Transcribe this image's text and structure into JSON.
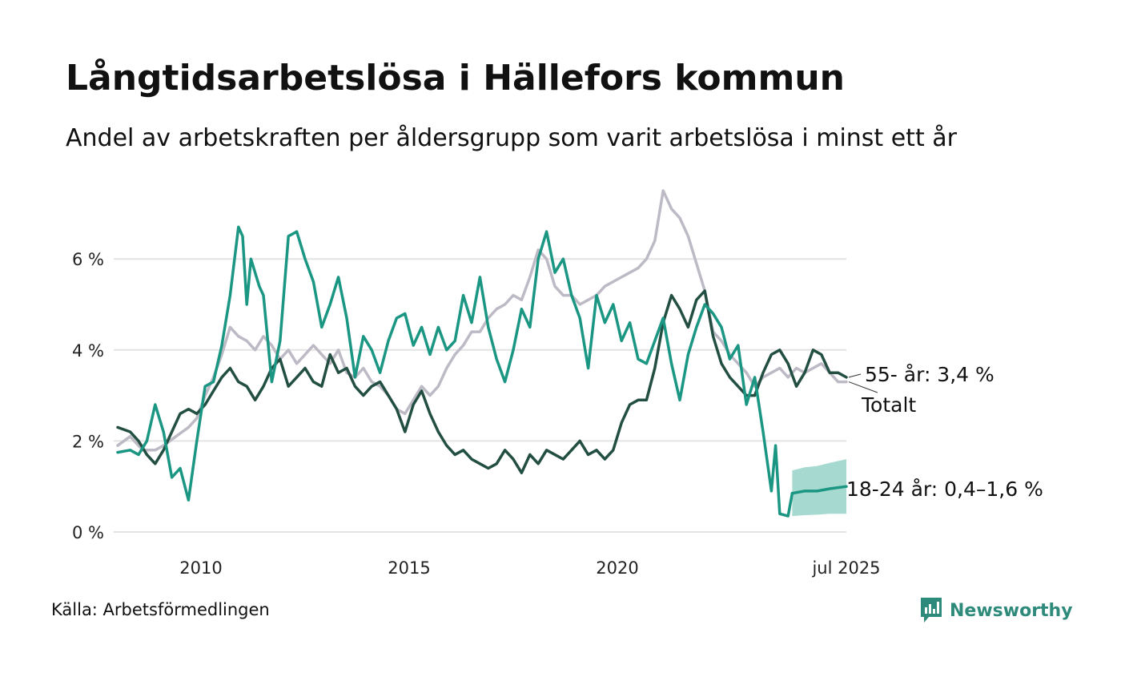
{
  "title": "Långtidsarbetslösa i Hällefors kommun",
  "subtitle": "Andel av arbetskraften per åldersgrupp som varit arbetslösa i minst ett år",
  "source": "Källa: Arbetsförmedlingen",
  "brand": {
    "name": "Newsworthy",
    "icon": "newsworthy-logo-icon"
  },
  "colors": {
    "youth": "#1a9683",
    "youth_band": "#a6d9cf",
    "senior": "#234f43",
    "total": "#bdbac6",
    "grid": "#e3e3e3"
  },
  "chart_data": {
    "type": "line",
    "title": "Långtidsarbetslösa i Hällefors kommun",
    "subtitle": "Andel av arbetskraften per åldersgrupp som varit arbetslösa i minst ett år",
    "xlabel": "",
    "ylabel": "",
    "ylim": [
      0,
      7.5
    ],
    "xlim": [
      2008.0,
      2025.5
    ],
    "y_ticks": [
      {
        "value": 0,
        "label": "0 %"
      },
      {
        "value": 2,
        "label": "2 %"
      },
      {
        "value": 4,
        "label": "4 %"
      },
      {
        "value": 6,
        "label": "6 %"
      }
    ],
    "x_ticks": [
      {
        "value": 2010.0,
        "label": "2010"
      },
      {
        "value": 2015.0,
        "label": "2015"
      },
      {
        "value": 2020.0,
        "label": "2020"
      },
      {
        "value": 2025.5,
        "label": "jul 2025"
      }
    ],
    "grid": true,
    "legend": "direct labels at line ends",
    "series": [
      {
        "name": "Totalt",
        "label": "Totalt",
        "points": [
          [
            2008.0,
            1.9
          ],
          [
            2008.3,
            2.1
          ],
          [
            2008.6,
            1.8
          ],
          [
            2008.9,
            1.8
          ],
          [
            2009.1,
            1.9
          ],
          [
            2009.4,
            2.1
          ],
          [
            2009.7,
            2.3
          ],
          [
            2009.9,
            2.5
          ],
          [
            2010.1,
            3.0
          ],
          [
            2010.3,
            3.4
          ],
          [
            2010.5,
            3.9
          ],
          [
            2010.6,
            4.2
          ],
          [
            2010.7,
            4.5
          ],
          [
            2010.9,
            4.3
          ],
          [
            2011.1,
            4.2
          ],
          [
            2011.3,
            4.0
          ],
          [
            2011.5,
            4.3
          ],
          [
            2011.7,
            4.1
          ],
          [
            2011.9,
            3.8
          ],
          [
            2012.1,
            4.0
          ],
          [
            2012.3,
            3.7
          ],
          [
            2012.5,
            3.9
          ],
          [
            2012.7,
            4.1
          ],
          [
            2012.9,
            3.9
          ],
          [
            2013.1,
            3.7
          ],
          [
            2013.3,
            4.0
          ],
          [
            2013.5,
            3.5
          ],
          [
            2013.7,
            3.4
          ],
          [
            2013.9,
            3.6
          ],
          [
            2014.1,
            3.3
          ],
          [
            2014.3,
            3.2
          ],
          [
            2014.5,
            3.0
          ],
          [
            2014.7,
            2.7
          ],
          [
            2014.9,
            2.6
          ],
          [
            2015.1,
            2.9
          ],
          [
            2015.3,
            3.2
          ],
          [
            2015.5,
            3.0
          ],
          [
            2015.7,
            3.2
          ],
          [
            2015.9,
            3.6
          ],
          [
            2016.1,
            3.9
          ],
          [
            2016.3,
            4.1
          ],
          [
            2016.5,
            4.4
          ],
          [
            2016.7,
            4.4
          ],
          [
            2016.9,
            4.7
          ],
          [
            2017.1,
            4.9
          ],
          [
            2017.3,
            5.0
          ],
          [
            2017.5,
            5.2
          ],
          [
            2017.7,
            5.1
          ],
          [
            2017.9,
            5.6
          ],
          [
            2018.1,
            6.2
          ],
          [
            2018.3,
            6.0
          ],
          [
            2018.5,
            5.4
          ],
          [
            2018.7,
            5.2
          ],
          [
            2018.9,
            5.2
          ],
          [
            2019.1,
            5.0
          ],
          [
            2019.3,
            5.1
          ],
          [
            2019.5,
            5.2
          ],
          [
            2019.7,
            5.4
          ],
          [
            2019.9,
            5.5
          ],
          [
            2020.1,
            5.6
          ],
          [
            2020.3,
            5.7
          ],
          [
            2020.5,
            5.8
          ],
          [
            2020.7,
            6.0
          ],
          [
            2020.9,
            6.4
          ],
          [
            2021.1,
            7.5
          ],
          [
            2021.3,
            7.1
          ],
          [
            2021.5,
            6.9
          ],
          [
            2021.7,
            6.5
          ],
          [
            2021.9,
            5.9
          ],
          [
            2022.1,
            5.3
          ],
          [
            2022.3,
            4.4
          ],
          [
            2022.5,
            4.2
          ],
          [
            2022.7,
            3.9
          ],
          [
            2022.9,
            3.7
          ],
          [
            2023.1,
            3.5
          ],
          [
            2023.3,
            3.2
          ],
          [
            2023.5,
            3.4
          ],
          [
            2023.7,
            3.5
          ],
          [
            2023.9,
            3.6
          ],
          [
            2024.1,
            3.4
          ],
          [
            2024.3,
            3.6
          ],
          [
            2024.5,
            3.5
          ],
          [
            2024.7,
            3.6
          ],
          [
            2024.9,
            3.7
          ],
          [
            2025.1,
            3.5
          ],
          [
            2025.3,
            3.3
          ],
          [
            2025.5,
            3.3
          ]
        ]
      },
      {
        "name": "55- år",
        "label": "55- år: 3,4 %",
        "points": [
          [
            2008.0,
            2.3
          ],
          [
            2008.3,
            2.2
          ],
          [
            2008.5,
            2.0
          ],
          [
            2008.7,
            1.7
          ],
          [
            2008.9,
            1.5
          ],
          [
            2009.1,
            1.8
          ],
          [
            2009.3,
            2.2
          ],
          [
            2009.5,
            2.6
          ],
          [
            2009.7,
            2.7
          ],
          [
            2009.9,
            2.6
          ],
          [
            2010.1,
            2.8
          ],
          [
            2010.3,
            3.1
          ],
          [
            2010.5,
            3.4
          ],
          [
            2010.7,
            3.6
          ],
          [
            2010.9,
            3.3
          ],
          [
            2011.1,
            3.2
          ],
          [
            2011.3,
            2.9
          ],
          [
            2011.5,
            3.2
          ],
          [
            2011.7,
            3.6
          ],
          [
            2011.9,
            3.8
          ],
          [
            2012.1,
            3.2
          ],
          [
            2012.3,
            3.4
          ],
          [
            2012.5,
            3.6
          ],
          [
            2012.7,
            3.3
          ],
          [
            2012.9,
            3.2
          ],
          [
            2013.1,
            3.9
          ],
          [
            2013.3,
            3.5
          ],
          [
            2013.5,
            3.6
          ],
          [
            2013.7,
            3.2
          ],
          [
            2013.9,
            3.0
          ],
          [
            2014.1,
            3.2
          ],
          [
            2014.3,
            3.3
          ],
          [
            2014.5,
            3.0
          ],
          [
            2014.7,
            2.7
          ],
          [
            2014.9,
            2.2
          ],
          [
            2015.1,
            2.8
          ],
          [
            2015.3,
            3.1
          ],
          [
            2015.5,
            2.6
          ],
          [
            2015.7,
            2.2
          ],
          [
            2015.9,
            1.9
          ],
          [
            2016.1,
            1.7
          ],
          [
            2016.3,
            1.8
          ],
          [
            2016.5,
            1.6
          ],
          [
            2016.7,
            1.5
          ],
          [
            2016.9,
            1.4
          ],
          [
            2017.1,
            1.5
          ],
          [
            2017.3,
            1.8
          ],
          [
            2017.5,
            1.6
          ],
          [
            2017.7,
            1.3
          ],
          [
            2017.9,
            1.7
          ],
          [
            2018.1,
            1.5
          ],
          [
            2018.3,
            1.8
          ],
          [
            2018.5,
            1.7
          ],
          [
            2018.7,
            1.6
          ],
          [
            2018.9,
            1.8
          ],
          [
            2019.1,
            2.0
          ],
          [
            2019.3,
            1.7
          ],
          [
            2019.5,
            1.8
          ],
          [
            2019.7,
            1.6
          ],
          [
            2019.9,
            1.8
          ],
          [
            2020.1,
            2.4
          ],
          [
            2020.3,
            2.8
          ],
          [
            2020.5,
            2.9
          ],
          [
            2020.7,
            2.9
          ],
          [
            2020.9,
            3.6
          ],
          [
            2021.1,
            4.6
          ],
          [
            2021.3,
            5.2
          ],
          [
            2021.5,
            4.9
          ],
          [
            2021.7,
            4.5
          ],
          [
            2021.9,
            5.1
          ],
          [
            2022.1,
            5.3
          ],
          [
            2022.3,
            4.3
          ],
          [
            2022.5,
            3.7
          ],
          [
            2022.7,
            3.4
          ],
          [
            2022.9,
            3.2
          ],
          [
            2023.1,
            3.0
          ],
          [
            2023.3,
            3.0
          ],
          [
            2023.5,
            3.5
          ],
          [
            2023.7,
            3.9
          ],
          [
            2023.9,
            4.0
          ],
          [
            2024.1,
            3.7
          ],
          [
            2024.3,
            3.2
          ],
          [
            2024.5,
            3.5
          ],
          [
            2024.7,
            4.0
          ],
          [
            2024.9,
            3.9
          ],
          [
            2025.1,
            3.5
          ],
          [
            2025.3,
            3.5
          ],
          [
            2025.5,
            3.4
          ]
        ]
      },
      {
        "name": "18-24 år",
        "label": "18-24 år: 0,4–1,6 %",
        "points": [
          [
            2008.0,
            1.75
          ],
          [
            2008.3,
            1.8
          ],
          [
            2008.5,
            1.7
          ],
          [
            2008.7,
            2.0
          ],
          [
            2008.9,
            2.8
          ],
          [
            2009.1,
            2.2
          ],
          [
            2009.3,
            1.2
          ],
          [
            2009.5,
            1.4
          ],
          [
            2009.7,
            0.7
          ],
          [
            2009.9,
            2.0
          ],
          [
            2010.1,
            3.2
          ],
          [
            2010.3,
            3.3
          ],
          [
            2010.5,
            4.1
          ],
          [
            2010.7,
            5.2
          ],
          [
            2010.9,
            6.7
          ],
          [
            2011.0,
            6.5
          ],
          [
            2011.1,
            5.0
          ],
          [
            2011.2,
            6.0
          ],
          [
            2011.4,
            5.4
          ],
          [
            2011.5,
            5.2
          ],
          [
            2011.7,
            3.3
          ],
          [
            2011.9,
            4.2
          ],
          [
            2012.1,
            6.5
          ],
          [
            2012.3,
            6.6
          ],
          [
            2012.5,
            6.0
          ],
          [
            2012.7,
            5.5
          ],
          [
            2012.9,
            4.5
          ],
          [
            2013.1,
            5.0
          ],
          [
            2013.3,
            5.6
          ],
          [
            2013.5,
            4.7
          ],
          [
            2013.7,
            3.4
          ],
          [
            2013.9,
            4.3
          ],
          [
            2014.1,
            4.0
          ],
          [
            2014.3,
            3.5
          ],
          [
            2014.5,
            4.2
          ],
          [
            2014.7,
            4.7
          ],
          [
            2014.9,
            4.8
          ],
          [
            2015.1,
            4.1
          ],
          [
            2015.3,
            4.5
          ],
          [
            2015.5,
            3.9
          ],
          [
            2015.7,
            4.5
          ],
          [
            2015.9,
            4.0
          ],
          [
            2016.1,
            4.2
          ],
          [
            2016.3,
            5.2
          ],
          [
            2016.5,
            4.6
          ],
          [
            2016.7,
            5.6
          ],
          [
            2016.9,
            4.5
          ],
          [
            2017.1,
            3.8
          ],
          [
            2017.3,
            3.3
          ],
          [
            2017.5,
            4.0
          ],
          [
            2017.7,
            4.9
          ],
          [
            2017.9,
            4.5
          ],
          [
            2018.1,
            6.0
          ],
          [
            2018.3,
            6.6
          ],
          [
            2018.5,
            5.7
          ],
          [
            2018.7,
            6.0
          ],
          [
            2018.9,
            5.2
          ],
          [
            2019.1,
            4.7
          ],
          [
            2019.3,
            3.6
          ],
          [
            2019.5,
            5.2
          ],
          [
            2019.7,
            4.6
          ],
          [
            2019.9,
            5.0
          ],
          [
            2020.1,
            4.2
          ],
          [
            2020.3,
            4.6
          ],
          [
            2020.5,
            3.8
          ],
          [
            2020.7,
            3.7
          ],
          [
            2020.9,
            4.2
          ],
          [
            2021.1,
            4.7
          ],
          [
            2021.3,
            3.7
          ],
          [
            2021.5,
            2.9
          ],
          [
            2021.7,
            3.9
          ],
          [
            2021.9,
            4.5
          ],
          [
            2022.1,
            5.0
          ],
          [
            2022.3,
            4.8
          ],
          [
            2022.5,
            4.5
          ],
          [
            2022.7,
            3.8
          ],
          [
            2022.9,
            4.1
          ],
          [
            2023.1,
            2.8
          ],
          [
            2023.3,
            3.4
          ],
          [
            2023.5,
            2.2
          ],
          [
            2023.7,
            0.9
          ],
          [
            2023.8,
            1.9
          ],
          [
            2023.9,
            0.4
          ],
          [
            2024.1,
            0.35
          ],
          [
            2024.2,
            0.85
          ]
        ],
        "forecast": {
          "central": [
            [
              2024.2,
              0.85
            ],
            [
              2024.5,
              0.9
            ],
            [
              2024.8,
              0.9
            ],
            [
              2025.1,
              0.95
            ],
            [
              2025.5,
              1.0
            ]
          ],
          "low": [
            [
              2024.2,
              0.35
            ],
            [
              2024.5,
              0.37
            ],
            [
              2024.8,
              0.38
            ],
            [
              2025.1,
              0.4
            ],
            [
              2025.5,
              0.4
            ]
          ],
          "high": [
            [
              2024.2,
              1.35
            ],
            [
              2024.5,
              1.42
            ],
            [
              2024.8,
              1.45
            ],
            [
              2025.1,
              1.52
            ],
            [
              2025.5,
              1.6
            ]
          ]
        }
      }
    ]
  }
}
